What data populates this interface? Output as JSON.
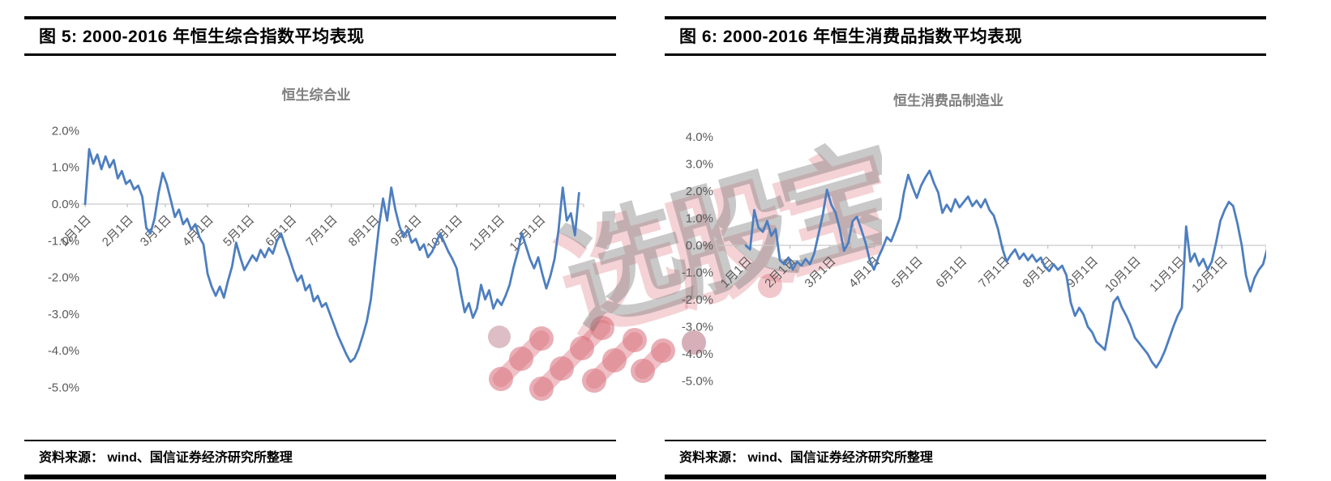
{
  "watermark": {
    "text": "选股宝",
    "text_color": "rgba(120,120,120,0.40)",
    "accent_color": "rgba(215,95,105,0.28)",
    "dot_color": "rgba(224,130,140,0.55)"
  },
  "panels": [
    {
      "figure_title": "图 5:  2000-2016 年恒生综合指数平均表现",
      "source_note": "资料来源： wind、国信证券经济研究所整理"
    },
    {
      "figure_title": "图 6:  2000-2016 年恒生消费品指数平均表现",
      "source_note": "资料来源： wind、国信证券经济研究所整理"
    }
  ],
  "chart_data": [
    {
      "type": "line",
      "title": "恒生综合业",
      "series_name": "恒生综合业",
      "unit": "percent",
      "ylim": [
        -5.0,
        2.0
      ],
      "grid": "zero-axis-only",
      "legend": "none",
      "line_color": "#4d7ec0",
      "axis_color": "#c9c9c9",
      "label_color": "#595959",
      "y_tick_labels": [
        "2.0%",
        "1.0%",
        "0.0%",
        "-1.0%",
        "-2.0%",
        "-3.0%",
        "-4.0%",
        "-5.0%"
      ],
      "y_tick_values": [
        2,
        1,
        0,
        -1,
        -2,
        -3,
        -4,
        -5
      ],
      "x_tick_labels": [
        "1月1日",
        "2月1日",
        "3月1日",
        "4月1日",
        "5月1日",
        "6月1日",
        "7月1日",
        "8月1日",
        "9月1日",
        "10月1日",
        "11月1日",
        "12月1日"
      ],
      "sample_interval_days": 3,
      "values": [
        0.0,
        1.5,
        1.1,
        1.35,
        0.95,
        1.3,
        1.0,
        1.2,
        0.7,
        0.9,
        0.55,
        0.65,
        0.4,
        0.5,
        0.2,
        -0.65,
        -0.8,
        -0.4,
        0.3,
        0.85,
        0.55,
        0.1,
        -0.35,
        -0.15,
        -0.55,
        -0.4,
        -0.7,
        -0.55,
        -0.9,
        -1.1,
        -1.9,
        -2.25,
        -2.5,
        -2.25,
        -2.55,
        -2.1,
        -1.7,
        -1.05,
        -1.45,
        -1.8,
        -1.6,
        -1.4,
        -1.55,
        -1.25,
        -1.45,
        -1.2,
        -1.35,
        -1.0,
        -0.8,
        -1.15,
        -1.45,
        -1.8,
        -2.1,
        -1.95,
        -2.35,
        -2.2,
        -2.65,
        -2.5,
        -2.8,
        -2.7,
        -3.0,
        -3.3,
        -3.6,
        -3.85,
        -4.1,
        -4.3,
        -4.2,
        -3.95,
        -3.6,
        -3.2,
        -2.6,
        -1.6,
        -0.6,
        0.15,
        -0.45,
        0.45,
        -0.15,
        -0.6,
        -0.9,
        -0.7,
        -1.05,
        -0.95,
        -1.25,
        -1.1,
        -1.45,
        -1.3,
        -1.05,
        -0.8,
        -1.05,
        -1.3,
        -1.5,
        -1.75,
        -2.4,
        -2.95,
        -2.7,
        -3.1,
        -2.85,
        -2.2,
        -2.6,
        -2.35,
        -2.85,
        -2.6,
        -2.75,
        -2.5,
        -2.2,
        -1.7,
        -1.3,
        -0.8,
        -1.15,
        -1.5,
        -1.75,
        -1.45,
        -1.9,
        -2.3,
        -1.95,
        -1.5,
        -0.7,
        0.45,
        -0.45,
        -0.25,
        -0.85,
        0.3
      ]
    },
    {
      "type": "line",
      "title": "恒生消费品制造业",
      "series_name": "恒生消费品制造业",
      "unit": "percent",
      "ylim": [
        -5.0,
        4.0
      ],
      "grid": "zero-axis-only",
      "legend": "none",
      "line_color": "#4d7ec0",
      "axis_color": "#c9c9c9",
      "label_color": "#595959",
      "y_tick_labels": [
        "4.0%",
        "3.0%",
        "2.0%",
        "1.0%",
        "0.0%",
        "-1.0%",
        "-2.0%",
        "-3.0%",
        "-4.0%",
        "-5.0%"
      ],
      "y_tick_values": [
        4,
        3,
        2,
        1,
        0,
        -1,
        -2,
        -3,
        -4,
        -5
      ],
      "x_tick_labels": [
        "1月1日",
        "2月1日",
        "3月1日",
        "4月1日",
        "5月1日",
        "6月1日",
        "7月1日",
        "8月1日",
        "9月1日",
        "10月1日",
        "11月1日",
        "12月1日"
      ],
      "sample_interval_days": 3,
      "values": [
        0.0,
        -0.15,
        1.3,
        0.65,
        0.5,
        0.9,
        0.35,
        0.6,
        -0.55,
        -0.7,
        -0.45,
        -0.9,
        -0.6,
        -0.75,
        -0.5,
        -0.7,
        -0.3,
        0.4,
        1.1,
        2.05,
        1.5,
        1.2,
        0.6,
        -0.2,
        0.1,
        0.9,
        1.05,
        0.6,
        0.1,
        -0.55,
        -0.9,
        -0.45,
        -0.1,
        0.3,
        0.15,
        0.55,
        1.0,
        1.95,
        2.6,
        2.15,
        1.75,
        2.2,
        2.5,
        2.75,
        2.3,
        1.95,
        1.2,
        1.5,
        1.25,
        1.7,
        1.4,
        1.6,
        1.8,
        1.45,
        1.65,
        1.4,
        1.7,
        1.3,
        1.1,
        0.6,
        -0.1,
        -0.6,
        -0.35,
        -0.15,
        -0.5,
        -0.3,
        -0.55,
        -0.35,
        -0.6,
        -0.45,
        -0.8,
        -0.95,
        -0.7,
        -0.9,
        -0.75,
        -1.1,
        -2.1,
        -2.6,
        -2.3,
        -2.55,
        -3.0,
        -3.2,
        -3.55,
        -3.7,
        -3.85,
        -3.0,
        -2.1,
        -1.9,
        -2.3,
        -2.6,
        -2.95,
        -3.4,
        -3.6,
        -3.8,
        -4.0,
        -4.3,
        -4.5,
        -4.25,
        -3.9,
        -3.45,
        -3.0,
        -2.6,
        -2.3,
        0.7,
        -0.6,
        -0.3,
        -0.75,
        -0.5,
        -0.9,
        -0.6,
        0.1,
        0.9,
        1.3,
        1.6,
        1.45,
        0.8,
        0.0,
        -1.1,
        -1.7,
        -1.2,
        -0.9,
        -0.7,
        -0.1
      ]
    }
  ]
}
